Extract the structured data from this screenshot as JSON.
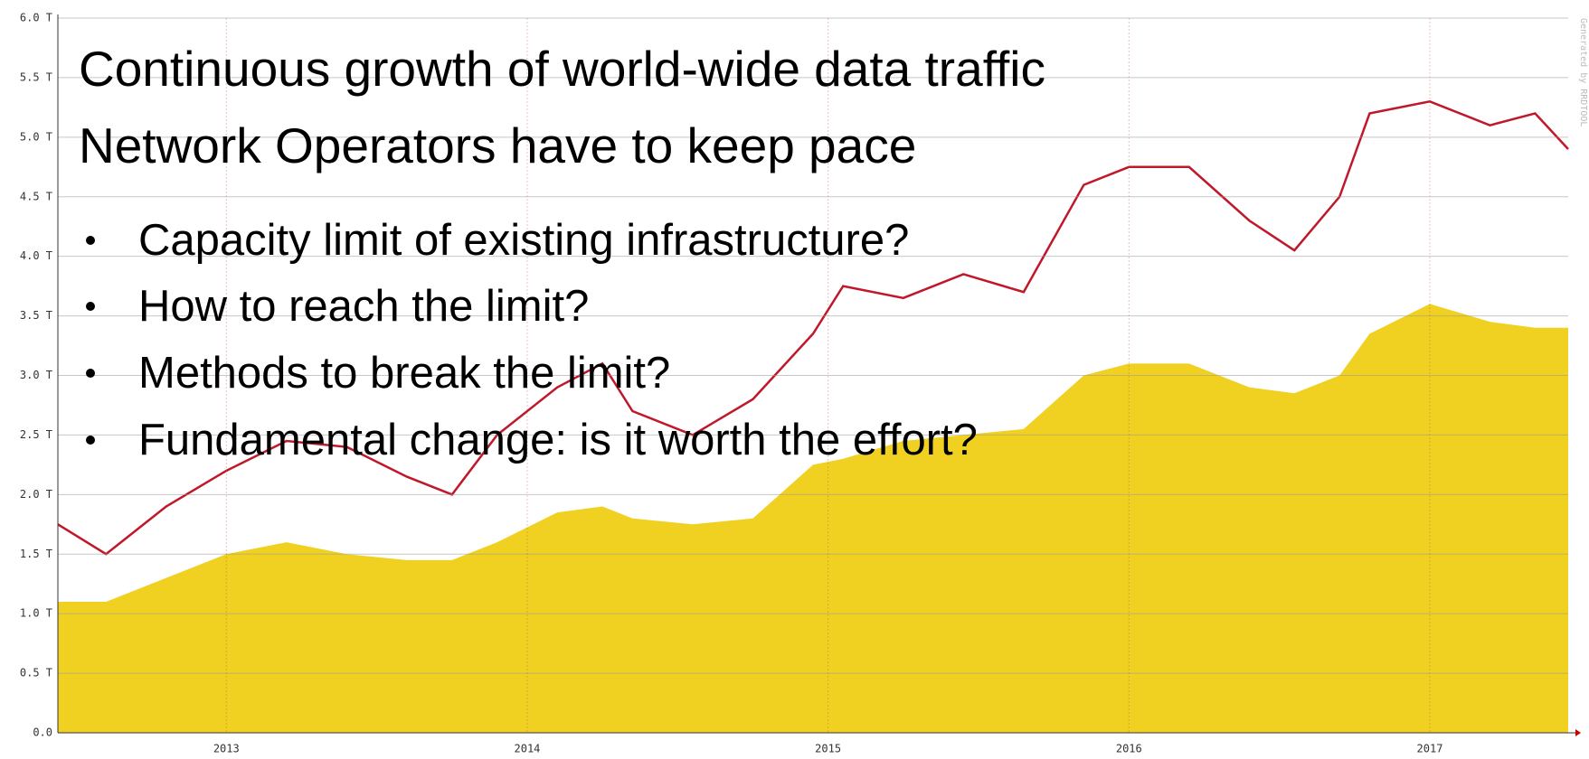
{
  "slide": {
    "title_lines": [
      "Continuous growth of world-wide data traffic",
      "Network Operators have to keep pace"
    ],
    "bullets": [
      "Capacity limit of existing infrastructure?",
      "How to reach the limit?",
      "Methods to break the limit?",
      "Fundamental change: is it worth the effort?"
    ]
  },
  "chart_data": {
    "type": "area-line",
    "annotation": "Generated by RRDTOOL",
    "x": [
      2012.44,
      2012.6,
      2012.8,
      2013.0,
      2013.2,
      2013.4,
      2013.6,
      2013.75,
      2013.9,
      2014.1,
      2014.25,
      2014.35,
      2014.55,
      2014.75,
      2014.95,
      2015.05,
      2015.25,
      2015.45,
      2015.65,
      2015.85,
      2016.0,
      2016.2,
      2016.4,
      2016.55,
      2016.7,
      2016.8,
      2017.0,
      2017.2,
      2017.35,
      2017.46
    ],
    "series": [
      {
        "color": "#f0d020",
        "style": "area",
        "values": [
          1.1,
          1.1,
          1.3,
          1.5,
          1.6,
          1.5,
          1.45,
          1.45,
          1.6,
          1.85,
          1.9,
          1.8,
          1.75,
          1.8,
          2.25,
          2.3,
          2.45,
          2.5,
          2.55,
          3.0,
          3.1,
          3.1,
          2.9,
          2.85,
          3.0,
          3.35,
          3.6,
          3.45,
          3.4,
          3.4
        ]
      },
      {
        "color": "#c0182a",
        "style": "line",
        "values": [
          1.75,
          1.5,
          1.9,
          2.2,
          2.45,
          2.4,
          2.15,
          2.0,
          2.5,
          2.9,
          3.1,
          2.7,
          2.5,
          2.8,
          3.35,
          3.75,
          3.65,
          3.85,
          3.7,
          4.6,
          4.75,
          4.75,
          4.3,
          4.05,
          4.5,
          5.2,
          5.3,
          5.1,
          5.2,
          4.9
        ]
      }
    ],
    "xlim": [
      2012.44,
      2017.46
    ],
    "xticks": [
      2013,
      2014,
      2015,
      2016,
      2017
    ],
    "ylim": [
      0,
      6
    ],
    "yticks": [
      {
        "value": 0,
        "label": "0.0"
      },
      {
        "value": 0.5,
        "label": "0.5 T"
      },
      {
        "value": 1,
        "label": "1.0 T"
      },
      {
        "value": 1.5,
        "label": "1.5 T"
      },
      {
        "value": 2,
        "label": "2.0 T"
      },
      {
        "value": 2.5,
        "label": "2.5 T"
      },
      {
        "value": 3,
        "label": "3.0 T"
      },
      {
        "value": 3.5,
        "label": "3.5 T"
      },
      {
        "value": 4,
        "label": "4.0 T"
      },
      {
        "value": 4.5,
        "label": "4.5 T"
      },
      {
        "value": 5,
        "label": "5.0 T"
      },
      {
        "value": 5.5,
        "label": "5.5 T"
      },
      {
        "value": 6,
        "label": "6.0 T"
      }
    ],
    "grid": true
  }
}
